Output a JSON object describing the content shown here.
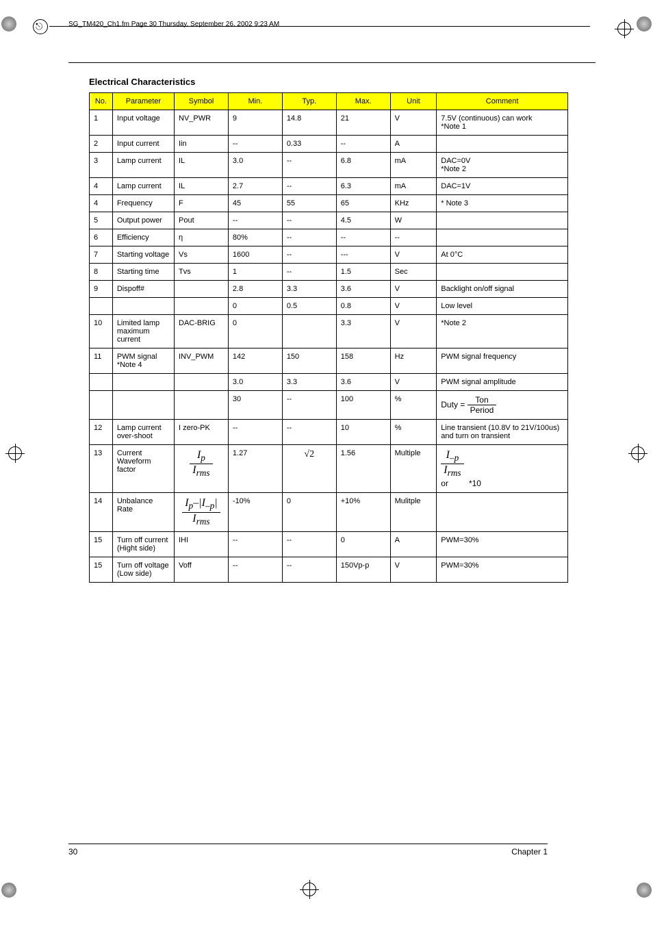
{
  "header": {
    "filepath": "SG_TM420_Ch1.fm  Page 30  Thursday, September 26, 2002  9:23 AM"
  },
  "section_title": "Electrical Characteristics",
  "columns": [
    "No.",
    "Parameter",
    "Symbol",
    "Min.",
    "Typ.",
    "Max.",
    "Unit",
    "Comment"
  ],
  "rows": [
    {
      "no": "1",
      "param": "Input voltage",
      "sym": "NV_PWR",
      "min": "9",
      "typ": "14.8",
      "max": "21",
      "unit": "V",
      "comment": "7.5V (continuous) can work\n*Note 1"
    },
    {
      "no": "2",
      "param": "Input current",
      "sym": "Iin",
      "min": "--",
      "typ": "0.33",
      "max": "--",
      "unit": "A",
      "comment": ""
    },
    {
      "no": "3",
      "param": "Lamp current",
      "sym": "IL",
      "min": "3.0",
      "typ": "--",
      "max": "6.8",
      "unit": "mA",
      "comment": "DAC=0V\n*Note 2"
    },
    {
      "no": "4",
      "param": "Lamp current",
      "sym": "IL",
      "min": "2.7",
      "typ": "--",
      "max": "6.3",
      "unit": "mA",
      "comment": "DAC=1V"
    },
    {
      "no": "4",
      "param": "Frequency",
      "sym": "F",
      "min": "45",
      "typ": "55",
      "max": "65",
      "unit": "KHz",
      "comment": "* Note 3"
    },
    {
      "no": "5",
      "param": "Output power",
      "sym": "Pout",
      "min": "--",
      "typ": "--",
      "max": "4.5",
      "unit": "W",
      "comment": ""
    },
    {
      "no": "6",
      "param": "Efficiency",
      "sym": "η",
      "min": "80%",
      "typ": "--",
      "max": "--",
      "unit": "--",
      "comment": ""
    },
    {
      "no": "7",
      "param": "Starting voltage",
      "sym": "Vs",
      "min": "1600",
      "typ": "--",
      "max": "---",
      "unit": "V",
      "comment": "At 0°C"
    },
    {
      "no": "8",
      "param": "Starting time",
      "sym": "Tvs",
      "min": "1",
      "typ": "--",
      "max": "1.5",
      "unit": "Sec",
      "comment": ""
    },
    {
      "no": "9",
      "param": "Dispoff#",
      "sym": "",
      "min": "2.8",
      "typ": "3.3",
      "max": "3.6",
      "unit": "V",
      "comment": "Backlight on/off signal"
    },
    {
      "no": "",
      "param": "",
      "sym": "",
      "min": "0",
      "typ": "0.5",
      "max": "0.8",
      "unit": "V",
      "comment": "Low level"
    },
    {
      "no": "10",
      "param": "Limited lamp maximum current",
      "sym": "DAC-BRIG",
      "min": "0",
      "typ": "",
      "max": "3.3",
      "unit": "V",
      "comment": "*Note 2"
    },
    {
      "no": "11",
      "param": "PWM signal *Note 4",
      "sym": "INV_PWM",
      "min": "142",
      "typ": "150",
      "max": "158",
      "unit": "Hz",
      "comment": "PWM signal frequency"
    },
    {
      "no": "",
      "param": "",
      "sym": "",
      "min": "3.0",
      "typ": "3.3",
      "max": "3.6",
      "unit": "V",
      "comment": "PWM signal amplitude"
    },
    {
      "no": "",
      "param": "",
      "sym": "",
      "min": "30",
      "typ": "--",
      "max": "100",
      "unit": "%",
      "comment": "FORMULA_DUTY"
    },
    {
      "no": "12",
      "param": "Lamp current over-shoot",
      "sym": "I zero-PK",
      "min": "--",
      "typ": "--",
      "max": "10",
      "unit": "%",
      "comment": "Line transient (10.8V to 21V/100us) and turn on transient"
    },
    {
      "no": "13",
      "param": "Current Waveform factor",
      "sym": "FORMULA_IP_IRMS",
      "min": "1.27",
      "typ": "FORMULA_SQRT2",
      "max": "1.56",
      "unit": "Multiple",
      "comment": "FORMULA_OR"
    },
    {
      "no": "14",
      "param": "Unbalance Rate",
      "sym": "FORMULA_UNBAL",
      "min": "-10%",
      "typ": "0",
      "max": "+10%",
      "unit": "Mulitple",
      "comment": ""
    },
    {
      "no": "15",
      "param": "Turn off current (Hight side)",
      "sym": "IHI",
      "min": "--",
      "typ": "--",
      "max": "0",
      "unit": "A",
      "comment": "PWM=30%"
    },
    {
      "no": "15",
      "param": "Turn off voltage (Low side)",
      "sym": "Voff",
      "min": "--",
      "typ": "--",
      "max": "150Vp-p",
      "unit": "V",
      "comment": "PWM=30%"
    }
  ],
  "formulas": {
    "duty_lhs": "Duty",
    "duty_eq": "=",
    "duty_top": "Ton",
    "duty_bot": "Period",
    "ip": "I",
    "ip_sub": "p",
    "irms": "I",
    "irms_sub": "rms",
    "sqrt2": "√2",
    "minus_p": "–p",
    "or_text": "or",
    "star10": "*10"
  },
  "footer": {
    "page": "30",
    "chapter": "Chapter 1"
  }
}
